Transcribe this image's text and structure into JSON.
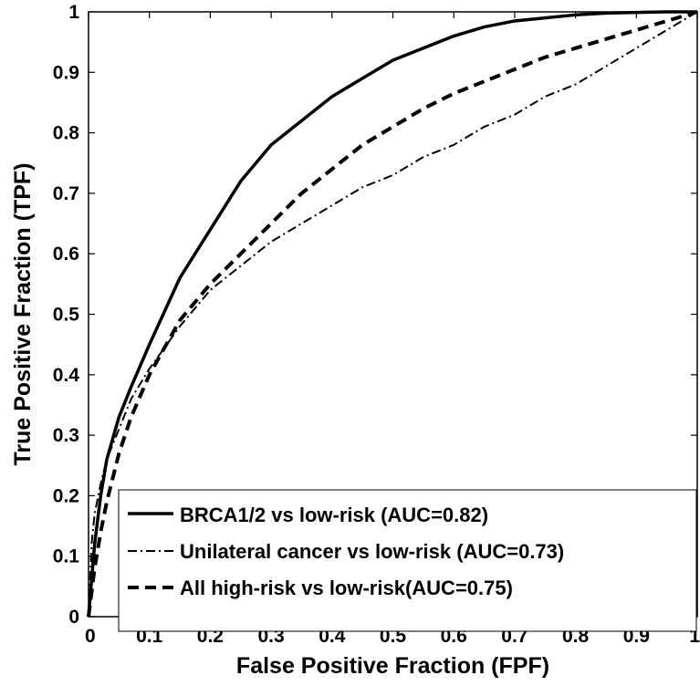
{
  "chart_data": {
    "type": "line",
    "title": "",
    "xlabel": "False Positive Fraction (FPF)",
    "ylabel": "True Positive Fraction (TPF)",
    "xlim": [
      0,
      1
    ],
    "ylim": [
      0,
      1
    ],
    "xticks": [
      "0",
      "0.1",
      "0.2",
      "0.3",
      "0.4",
      "0.5",
      "0.6",
      "0.7",
      "0.8",
      "0.9",
      "1"
    ],
    "yticks": [
      "0",
      "0.1",
      "0.2",
      "0.3",
      "0.4",
      "0.5",
      "0.6",
      "0.7",
      "0.8",
      "0.9",
      "1"
    ],
    "grid": false,
    "legend_position": "bottom-right",
    "x": [
      0,
      0.005,
      0.01,
      0.02,
      0.03,
      0.05,
      0.07,
      0.1,
      0.15,
      0.2,
      0.25,
      0.3,
      0.35,
      0.4,
      0.45,
      0.5,
      0.55,
      0.6,
      0.65,
      0.7,
      0.75,
      0.8,
      0.85,
      0.9,
      0.95,
      1
    ],
    "series": [
      {
        "name": "BRCA1/2 vs low-risk (AUC=0.82)",
        "style": "solid",
        "values": [
          0,
          0.06,
          0.12,
          0.2,
          0.26,
          0.33,
          0.38,
          0.45,
          0.56,
          0.64,
          0.72,
          0.78,
          0.82,
          0.86,
          0.89,
          0.92,
          0.94,
          0.96,
          0.975,
          0.985,
          0.99,
          0.995,
          0.998,
          0.999,
          1,
          1
        ]
      },
      {
        "name": "Unilateral cancer vs low-risk (AUC=0.73)",
        "style": "dashdot",
        "values": [
          0,
          0.12,
          0.17,
          0.22,
          0.26,
          0.31,
          0.36,
          0.41,
          0.48,
          0.54,
          0.58,
          0.62,
          0.65,
          0.68,
          0.71,
          0.73,
          0.76,
          0.78,
          0.81,
          0.83,
          0.86,
          0.88,
          0.91,
          0.94,
          0.97,
          1
        ]
      },
      {
        "name": "All high-risk vs low-risk(AUC=0.75)",
        "style": "dashed",
        "values": [
          0,
          0.04,
          0.08,
          0.14,
          0.19,
          0.27,
          0.33,
          0.4,
          0.49,
          0.55,
          0.6,
          0.65,
          0.7,
          0.74,
          0.78,
          0.81,
          0.84,
          0.865,
          0.885,
          0.905,
          0.925,
          0.94,
          0.955,
          0.97,
          0.985,
          1
        ]
      }
    ]
  }
}
